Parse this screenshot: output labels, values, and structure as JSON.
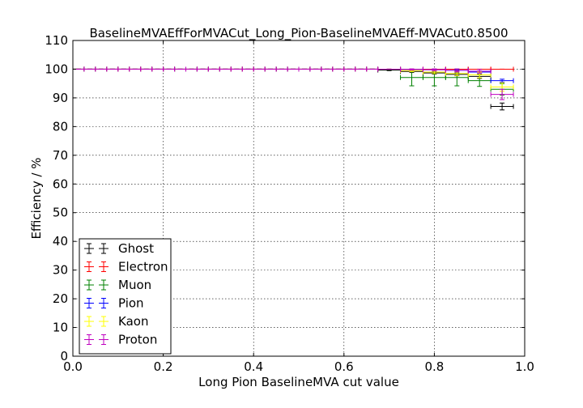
{
  "chart_data": {
    "type": "scatter",
    "title": "BaselineMVAEffForMVACut_Long_Pion-BaselineMVAEff-MVACut0.8500",
    "xlabel": "Long Pion BaselineMVA cut value",
    "ylabel": "Efficiency / %",
    "xlim": [
      0.0,
      1.0
    ],
    "ylim": [
      0,
      110
    ],
    "xticks": [
      "0.0",
      "0.2",
      "0.4",
      "0.6",
      "0.8",
      "1.0"
    ],
    "yticks": [
      "0",
      "10",
      "20",
      "30",
      "40",
      "50",
      "60",
      "70",
      "80",
      "90",
      "100",
      "110"
    ],
    "grid": true,
    "legend_position": "lower-left",
    "x": [
      0.0125,
      0.0375,
      0.0625,
      0.0875,
      0.1125,
      0.1375,
      0.1625,
      0.1875,
      0.2125,
      0.2375,
      0.2625,
      0.2875,
      0.3125,
      0.3375,
      0.3625,
      0.3875,
      0.4125,
      0.4375,
      0.4625,
      0.4875,
      0.5125,
      0.5375,
      0.5625,
      0.5875,
      0.6125,
      0.6375,
      0.6625,
      0.7,
      0.75,
      0.8,
      0.85,
      0.9,
      0.95
    ],
    "xerr": [
      0.0125,
      0.0125,
      0.0125,
      0.0125,
      0.0125,
      0.0125,
      0.0125,
      0.0125,
      0.0125,
      0.0125,
      0.0125,
      0.0125,
      0.0125,
      0.0125,
      0.0125,
      0.0125,
      0.0125,
      0.0125,
      0.0125,
      0.0125,
      0.0125,
      0.0125,
      0.0125,
      0.0125,
      0.0125,
      0.0125,
      0.0125,
      0.025,
      0.025,
      0.025,
      0.025,
      0.025,
      0.025
    ],
    "series": [
      {
        "name": "Ghost",
        "color": "#000000",
        "values": [
          100,
          100,
          100,
          100,
          100,
          100,
          100,
          100,
          100,
          100,
          100,
          100,
          100,
          100,
          100,
          100,
          100,
          100,
          100,
          100,
          100,
          100,
          100,
          100,
          100,
          100,
          100,
          99.7,
          99.2,
          98.7,
          98.2,
          97.5,
          87.0
        ],
        "yerr": [
          0,
          0,
          0,
          0,
          0,
          0,
          0,
          0,
          0,
          0,
          0,
          0,
          0,
          0,
          0,
          0,
          0,
          0,
          0,
          0,
          0,
          0,
          0,
          0,
          0,
          0,
          0,
          0.2,
          0.3,
          0.4,
          0.5,
          0.7,
          1.2
        ]
      },
      {
        "name": "Electron",
        "color": "#ff0000",
        "values": [
          100,
          100,
          100,
          100,
          100,
          100,
          100,
          100,
          100,
          100,
          100,
          100,
          100,
          100,
          100,
          100,
          100,
          100,
          100,
          100,
          100,
          100,
          100,
          100,
          100,
          100,
          100,
          100,
          100,
          100,
          100,
          100,
          100
        ],
        "yerr": [
          0,
          0,
          0,
          0,
          0,
          0,
          0,
          0,
          0,
          0,
          0,
          0,
          0,
          0,
          0,
          0,
          0,
          0,
          0,
          0,
          0,
          0,
          0,
          0,
          0,
          0,
          0,
          0,
          0,
          0,
          0,
          0,
          0
        ]
      },
      {
        "name": "Muon",
        "color": "#008000",
        "values": [
          100,
          100,
          100,
          100,
          100,
          100,
          100,
          100,
          100,
          100,
          100,
          100,
          100,
          100,
          100,
          100,
          100,
          100,
          100,
          100,
          100,
          100,
          100,
          100,
          100,
          100,
          100,
          100,
          97.1,
          97.1,
          97.1,
          96.0,
          93.0
        ],
        "yerr": [
          0,
          0,
          0,
          0,
          0,
          0,
          0,
          0,
          0,
          0,
          0,
          0,
          0,
          0,
          0,
          0,
          0,
          0,
          0,
          0,
          0,
          0,
          0,
          0,
          0,
          0,
          0,
          0,
          2.9,
          2.9,
          2.9,
          2.0,
          2.0
        ]
      },
      {
        "name": "Pion",
        "color": "#0000ff",
        "values": [
          100,
          100,
          100,
          100,
          100,
          100,
          100,
          100,
          100,
          100,
          100,
          100,
          100,
          100,
          100,
          100,
          100,
          100,
          100,
          100,
          100,
          100,
          100,
          100,
          100,
          100,
          100,
          100,
          99.9,
          99.8,
          99.6,
          99.0,
          96.0
        ],
        "yerr": [
          0,
          0,
          0,
          0,
          0,
          0,
          0,
          0,
          0,
          0,
          0,
          0,
          0,
          0,
          0,
          0,
          0,
          0,
          0,
          0,
          0,
          0,
          0,
          0,
          0,
          0,
          0,
          0,
          0.1,
          0.1,
          0.2,
          0.3,
          0.5
        ]
      },
      {
        "name": "Kaon",
        "color": "#ffff00",
        "values": [
          100,
          100,
          100,
          100,
          100,
          100,
          100,
          100,
          100,
          100,
          100,
          100,
          100,
          100,
          100,
          100,
          100,
          100,
          100,
          100,
          100,
          100,
          100,
          100,
          100,
          100,
          100,
          100,
          99.5,
          99.0,
          98.5,
          98.0,
          93.8
        ],
        "yerr": [
          0,
          0,
          0,
          0,
          0,
          0,
          0,
          0,
          0,
          0,
          0,
          0,
          0,
          0,
          0,
          0,
          0,
          0,
          0,
          0,
          0,
          0,
          0,
          0,
          0,
          0,
          0,
          0,
          0.3,
          0.5,
          0.7,
          1.0,
          1.5
        ]
      },
      {
        "name": "Proton",
        "color": "#bf00bf",
        "values": [
          100,
          100,
          100,
          100,
          100,
          100,
          100,
          100,
          100,
          100,
          100,
          100,
          100,
          100,
          100,
          100,
          100,
          100,
          100,
          100,
          100,
          100,
          100,
          100,
          100,
          100,
          100,
          100,
          99.9,
          99.8,
          99.6,
          99.3,
          91.2
        ],
        "yerr": [
          0,
          0,
          0,
          0,
          0,
          0,
          0,
          0,
          0,
          0,
          0,
          0,
          0,
          0,
          0,
          0,
          0,
          0,
          0,
          0,
          0,
          0,
          0,
          0,
          0,
          0,
          0,
          0,
          0.2,
          0.3,
          0.5,
          0.6,
          1.8
        ]
      }
    ]
  }
}
